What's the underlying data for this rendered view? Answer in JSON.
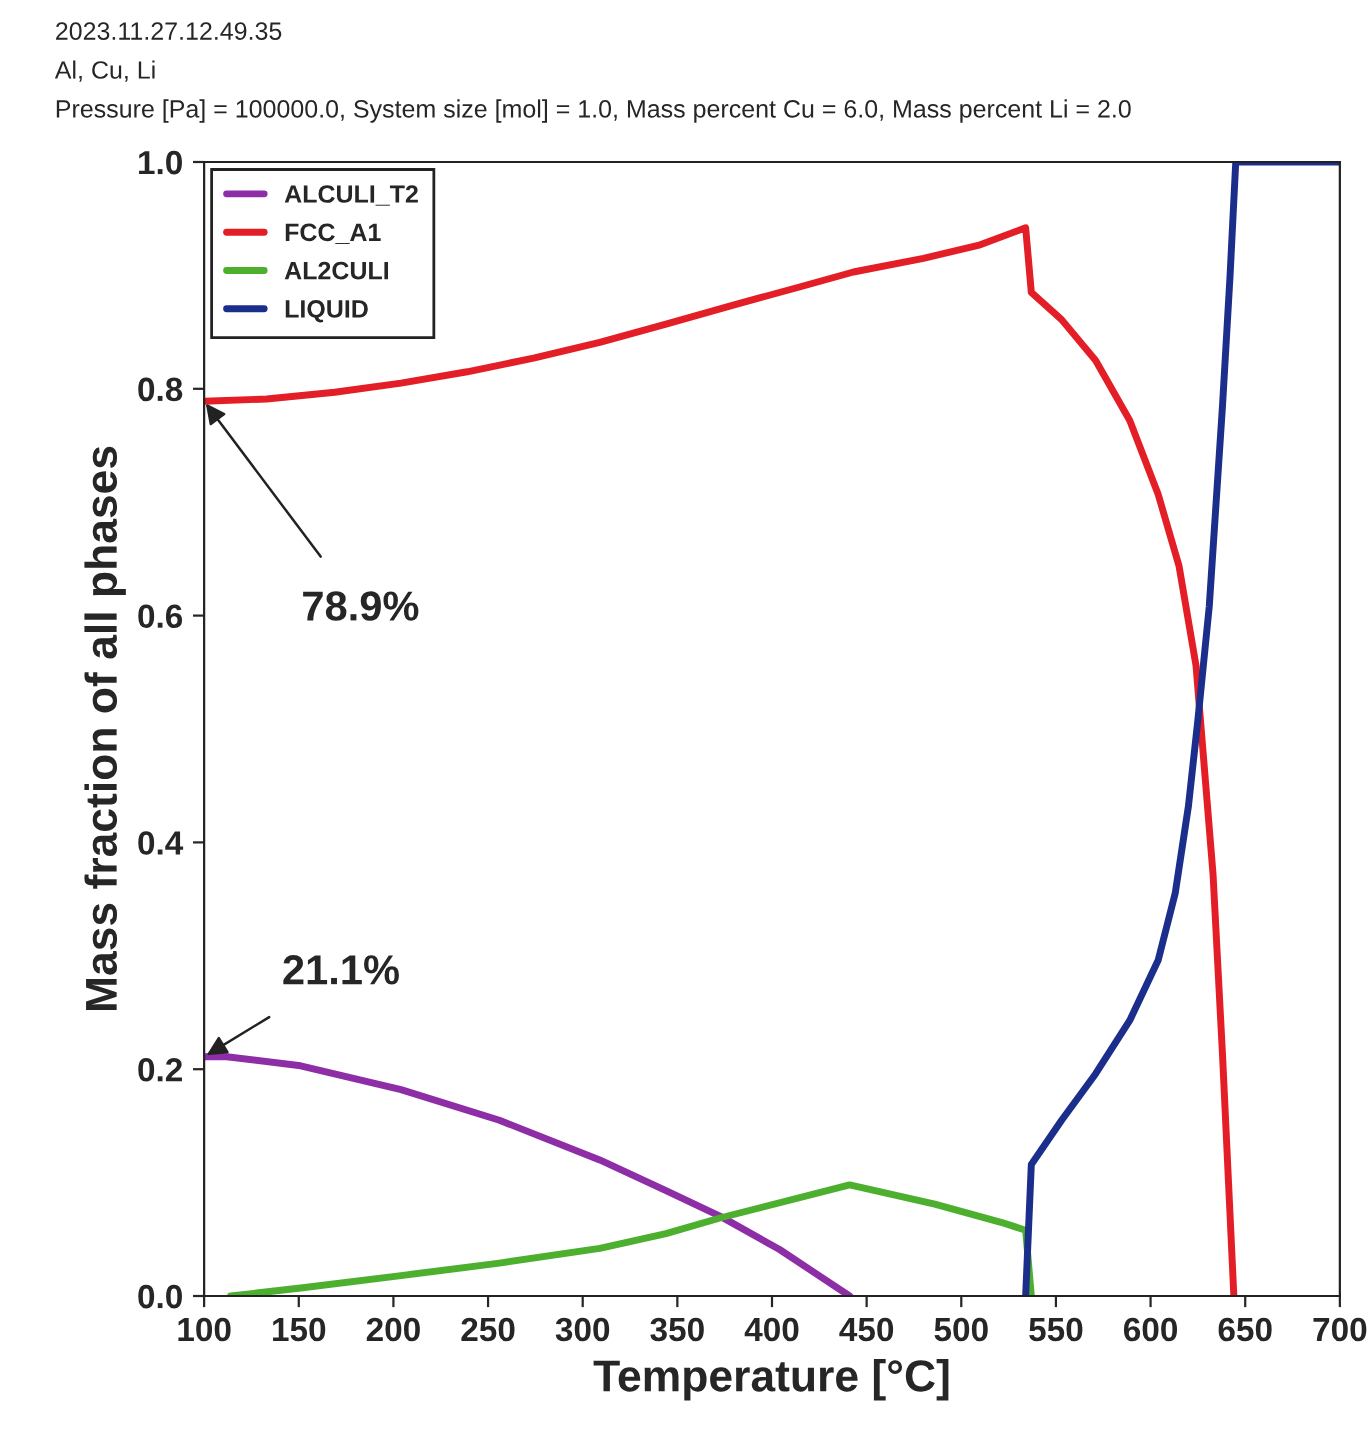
{
  "chart_data": {
    "type": "line",
    "title": "2023.11.27.12.49.35",
    "subtitle": "Al, Cu, Li",
    "xlabel": "Temperature [°C]",
    "ylabel": "Mass fraction of all phases",
    "annotations": [
      "Pressure [Pa] = 100000.0, System size [mol] = 1.0, Mass percent Cu = 6.0, Mass percent Li = 2.0",
      {
        "text": "78.9%",
        "x": 100,
        "y": 0.789
      },
      {
        "text": "21.1%",
        "x": 100,
        "y": 0.211
      }
    ],
    "series": [
      {
        "name": "ALCULI_T2",
        "color": "#8e2ea6",
        "x": [
          100,
          112,
          151,
          204,
          256,
          309,
          344,
          373,
          404,
          441
        ],
        "values": [
          0.211,
          0.211,
          0.203,
          0.182,
          0.155,
          0.12,
          0.093,
          0.07,
          0.041,
          0
        ]
      },
      {
        "name": "FCC_A1",
        "color": "#e41e26",
        "x": [
          100,
          133,
          169,
          204,
          239,
          274,
          309,
          344,
          380,
          415,
          443,
          480,
          510,
          534,
          537,
          553,
          571,
          589,
          604,
          615,
          624,
          633,
          638,
          644
        ],
        "values": [
          0.789,
          0.791,
          0.797,
          0.805,
          0.815,
          0.827,
          0.841,
          0.857,
          0.874,
          0.89,
          0.903,
          0.915,
          0.927,
          0.942,
          0.885,
          0.861,
          0.825,
          0.772,
          0.707,
          0.644,
          0.556,
          0.372,
          0.213,
          0
        ]
      },
      {
        "name": "AL2CULI",
        "color": "#4caf2e",
        "x": [
          114,
          151,
          204,
          256,
          309,
          344,
          373,
          441,
          486,
          521,
          534,
          537
        ],
        "values": [
          0,
          0.007,
          0.018,
          0.029,
          0.042,
          0.055,
          0.069,
          0.098,
          0.081,
          0.065,
          0.058,
          0
        ]
      },
      {
        "name": "LIQUID",
        "color": "#1c2e8c",
        "x": [
          534,
          537,
          553,
          571,
          589,
          604,
          613,
          620,
          625,
          631,
          638,
          642,
          645,
          700
        ],
        "values": [
          0,
          0.116,
          0.155,
          0.196,
          0.243,
          0.296,
          0.355,
          0.432,
          0.508,
          0.608,
          0.785,
          0.9,
          1.0,
          1.0
        ]
      }
    ],
    "xlim": [
      100,
      700
    ],
    "xticks": [
      100,
      150,
      200,
      250,
      300,
      350,
      400,
      450,
      500,
      550,
      600,
      650,
      700
    ],
    "ylim": [
      0,
      1
    ],
    "yticks": [
      {
        "value": 0,
        "label": "0.0"
      },
      {
        "value": 0.2,
        "label": "0.2"
      },
      {
        "value": 0.4,
        "label": "0.4"
      },
      {
        "value": 0.6,
        "label": "0.6"
      },
      {
        "value": 0.8,
        "label": "0.8"
      },
      {
        "value": 1,
        "label": "1.0"
      }
    ],
    "grid": false,
    "legend": "top left",
    "marker": "none",
    "line_style": "solid"
  }
}
